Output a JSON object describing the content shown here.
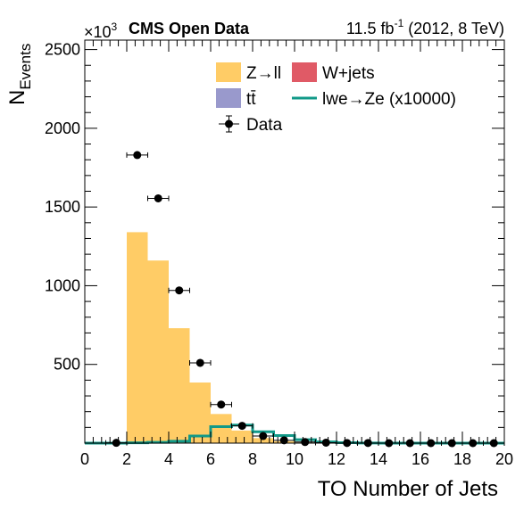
{
  "header": {
    "multiplier_base": "×10",
    "multiplier_exp": "3",
    "experiment": "CMS Open Data",
    "lumi_value": "11.5 fb",
    "lumi_exp": "-1",
    "lumi_rest": " (2012, 8 TeV)"
  },
  "axes": {
    "xlabel": "TO Number of Jets",
    "ylabel_main": "N",
    "ylabel_sub": "Events"
  },
  "legend": {
    "zll": "Z→ll",
    "wjets": "W+jets",
    "ttbar": "tt̄",
    "signal": "lwe→Ze (x10000)",
    "data": "Data"
  },
  "colors": {
    "zll": "#ffcc66",
    "wjets": "#e05a66",
    "ttbar": "#9999cc",
    "signal": "#119988",
    "data": "#000000"
  },
  "chart_data": {
    "type": "bar",
    "title": "",
    "xlabel": "TO Number of Jets",
    "ylabel": "N_Events",
    "y_multiplier": 1000,
    "xlim": [
      0,
      20
    ],
    "ylim": [
      0,
      2560
    ],
    "grid": false,
    "legend_position": "top-center",
    "xticks": [
      0,
      2,
      4,
      6,
      8,
      10,
      12,
      14,
      16,
      18,
      20
    ],
    "yticks": [
      500,
      1000,
      1500,
      2000,
      2500
    ],
    "bin_edges": [
      0,
      1,
      2,
      3,
      4,
      5,
      6,
      7,
      8,
      9,
      10,
      11,
      12,
      13,
      14,
      15,
      16,
      17,
      18,
      19,
      20
    ],
    "series": [
      {
        "name": "Z→ll",
        "kind": "stacked-hist",
        "values": [
          0,
          0,
          1340,
          1160,
          730,
          385,
          185,
          80,
          32,
          12,
          4,
          1,
          0,
          0,
          0,
          0,
          0,
          0,
          0,
          0
        ]
      },
      {
        "name": "W+jets",
        "kind": "stacked-hist",
        "values": [
          0,
          0,
          0,
          0,
          0,
          0,
          0,
          0,
          0,
          0,
          0,
          0,
          0,
          0,
          0,
          0,
          0,
          0,
          0,
          0
        ]
      },
      {
        "name": "tt̄",
        "kind": "stacked-hist",
        "values": [
          0,
          0,
          0,
          0,
          0,
          0,
          0,
          0,
          0,
          0,
          0,
          0,
          0,
          0,
          0,
          0,
          0,
          0,
          0,
          0
        ]
      },
      {
        "name": "lwe→Ze (x10000)",
        "kind": "line-hist",
        "values": [
          0,
          0,
          2,
          5,
          12,
          45,
          105,
          115,
          72,
          48,
          22,
          8,
          3,
          1,
          0,
          0,
          0,
          0,
          0,
          0
        ]
      },
      {
        "name": "Data",
        "kind": "points",
        "x": [
          1.5,
          2.5,
          3.5,
          4.5,
          5.5,
          6.5,
          7.5,
          8.5,
          9.5,
          10.5,
          11.5,
          12.5,
          13.5,
          14.5,
          15.5,
          16.5,
          17.5,
          18.5,
          19.5
        ],
        "values": [
          2,
          1830,
          1555,
          970,
          510,
          245,
          110,
          45,
          18,
          7,
          3,
          1,
          1,
          0,
          0,
          0,
          0,
          0,
          0
        ]
      }
    ]
  }
}
